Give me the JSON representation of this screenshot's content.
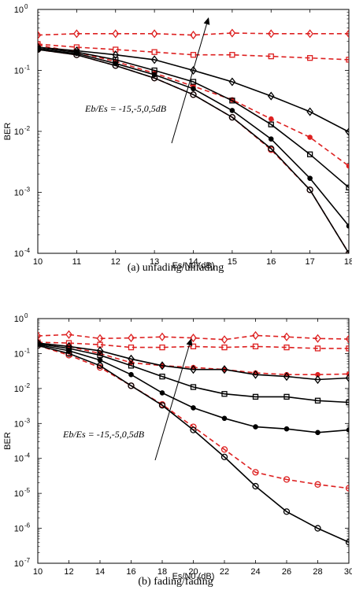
{
  "chart_data": [
    {
      "type": "line",
      "caption": "(a) unfading/unfading",
      "xlabel": "Es/N0 (dB)",
      "ylabel": "BER",
      "ylog": true,
      "xlim": [
        10,
        18
      ],
      "ylim": [
        0.0001,
        1
      ],
      "xticks": [
        10,
        11,
        12,
        13,
        14,
        15,
        16,
        17,
        18
      ],
      "ytick_exponents": [
        "0",
        "-1",
        "-2",
        "-3",
        "-4"
      ],
      "annotation": "Eb/Es = -15,-5,0,5dB",
      "x": [
        10,
        11,
        12,
        13,
        14,
        15,
        16,
        17,
        18
      ],
      "series": [
        {
          "color": "#dd2020",
          "dash": "dashed",
          "marker": "diamond",
          "values": [
            0.38,
            0.4,
            0.4,
            0.4,
            0.38,
            0.41,
            0.4,
            0.4,
            0.4
          ]
        },
        {
          "color": "#dd2020",
          "dash": "dashed",
          "marker": "square",
          "values": [
            0.27,
            0.24,
            0.22,
            0.2,
            0.18,
            0.18,
            0.17,
            0.16,
            0.15
          ]
        },
        {
          "color": "#dd2020",
          "dash": "dashed",
          "marker": "dot",
          "values": [
            0.26,
            0.2,
            0.14,
            0.09,
            0.055,
            0.033,
            0.016,
            0.008,
            0.0027
          ]
        },
        {
          "color": "#dd2020",
          "dash": "dashed",
          "marker": "circle",
          "values": [
            0.22,
            0.18,
            0.12,
            0.075,
            0.04,
            0.017,
            0.005,
            0.0011,
            0.0001
          ]
        },
        {
          "color": "#000000",
          "dash": "solid",
          "marker": "diamond",
          "values": [
            0.24,
            0.21,
            0.18,
            0.15,
            0.1,
            0.065,
            0.038,
            0.021,
            0.0098
          ]
        },
        {
          "color": "#000000",
          "dash": "solid",
          "marker": "square",
          "values": [
            0.23,
            0.2,
            0.15,
            0.1,
            0.065,
            0.032,
            0.013,
            0.0042,
            0.0012
          ]
        },
        {
          "color": "#000000",
          "dash": "solid",
          "marker": "dot",
          "values": [
            0.22,
            0.19,
            0.13,
            0.085,
            0.05,
            0.022,
            0.0075,
            0.0017,
            0.00028
          ]
        },
        {
          "color": "#000000",
          "dash": "solid",
          "marker": "circle",
          "values": [
            0.22,
            0.18,
            0.12,
            0.075,
            0.04,
            0.017,
            0.0052,
            0.0011,
            0.0001
          ]
        }
      ]
    },
    {
      "type": "line",
      "caption": "(b) fading/fading",
      "xlabel": "Es/N0 (dB)",
      "ylabel": "BER",
      "ylog": true,
      "xlim": [
        10,
        30
      ],
      "ylim": [
        1e-07,
        1
      ],
      "xticks": [
        10,
        12,
        14,
        16,
        18,
        20,
        22,
        24,
        26,
        28,
        30
      ],
      "ytick_exponents": [
        "0",
        "-1",
        "-2",
        "-3",
        "-4",
        "-5",
        "-6",
        "-7"
      ],
      "annotation": "Eb/Es = -15,-5,0,5dB",
      "x": [
        10,
        12,
        14,
        16,
        18,
        20,
        22,
        24,
        26,
        28,
        30
      ],
      "series": [
        {
          "color": "#dd2020",
          "dash": "dashed",
          "marker": "diamond",
          "values": [
            0.32,
            0.35,
            0.27,
            0.28,
            0.3,
            0.28,
            0.25,
            0.33,
            0.3,
            0.27,
            0.26
          ]
        },
        {
          "color": "#dd2020",
          "dash": "dashed",
          "marker": "square",
          "values": [
            0.21,
            0.2,
            0.18,
            0.15,
            0.15,
            0.16,
            0.15,
            0.16,
            0.15,
            0.14,
            0.14
          ]
        },
        {
          "color": "#dd2020",
          "dash": "dashed",
          "marker": "dot",
          "values": [
            0.2,
            0.16,
            0.1,
            0.055,
            0.045,
            0.04,
            0.035,
            0.028,
            0.025,
            0.025,
            0.026
          ]
        },
        {
          "color": "#dd2020",
          "dash": "dashed",
          "marker": "circle",
          "values": [
            0.17,
            0.09,
            0.04,
            0.012,
            0.0035,
            0.0008,
            0.00018,
            4e-05,
            2.5e-05,
            1.8e-05,
            1.4e-05
          ]
        },
        {
          "color": "#000000",
          "dash": "solid",
          "marker": "diamond",
          "values": [
            0.2,
            0.16,
            0.12,
            0.07,
            0.045,
            0.035,
            0.035,
            0.025,
            0.022,
            0.018,
            0.02
          ]
        },
        {
          "color": "#000000",
          "dash": "solid",
          "marker": "square",
          "values": [
            0.19,
            0.14,
            0.09,
            0.045,
            0.022,
            0.011,
            0.007,
            0.0058,
            0.0058,
            0.0045,
            0.004
          ]
        },
        {
          "color": "#000000",
          "dash": "solid",
          "marker": "dot",
          "values": [
            0.18,
            0.12,
            0.065,
            0.025,
            0.0075,
            0.0028,
            0.0014,
            0.0008,
            0.0007,
            0.00055,
            0.00065
          ]
        },
        {
          "color": "#000000",
          "dash": "solid",
          "marker": "circle",
          "values": [
            0.17,
            0.1,
            0.045,
            0.012,
            0.0033,
            0.00065,
            0.00011,
            1.6e-05,
            3e-06,
            1e-06,
            4e-07
          ]
        }
      ]
    }
  ]
}
